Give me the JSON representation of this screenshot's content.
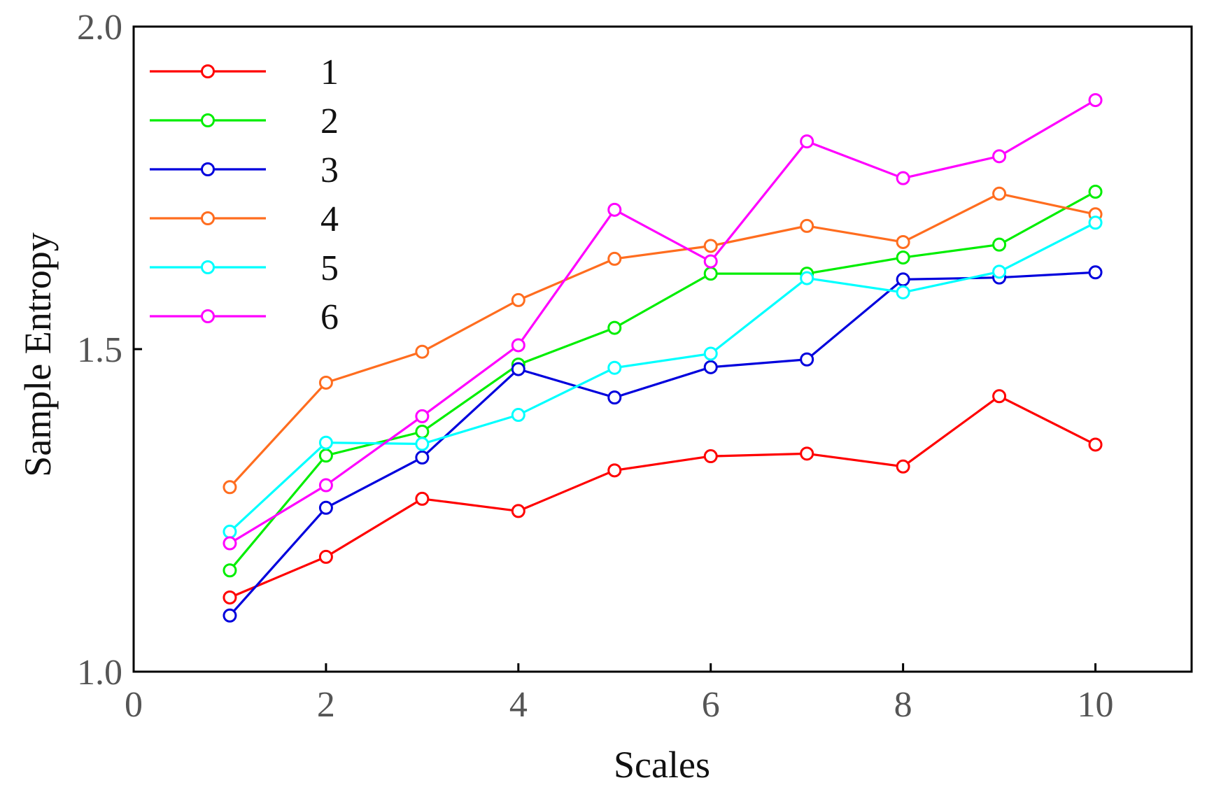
{
  "chart_data": {
    "type": "line",
    "title": "",
    "xlabel": "Scales",
    "ylabel": "Sample Entropy",
    "xlim": [
      0,
      11
    ],
    "ylim": [
      1.0,
      2.0
    ],
    "xticks": [
      0,
      2,
      4,
      6,
      8,
      10
    ],
    "xtick_labels": [
      "0",
      "2",
      "4",
      "6",
      "8",
      "10"
    ],
    "yticks": [
      1.0,
      1.5,
      2.0
    ],
    "ytick_labels": [
      "1.0",
      "1.5",
      "2.0"
    ],
    "grid": false,
    "legend_position": "top-left",
    "x": [
      1,
      2,
      3,
      4,
      5,
      6,
      7,
      8,
      9,
      10
    ],
    "series": [
      {
        "name": "1",
        "color": "#ff0000",
        "values": [
          1.115,
          1.178,
          1.268,
          1.249,
          1.312,
          1.334,
          1.338,
          1.318,
          1.427,
          1.352
        ]
      },
      {
        "name": "2",
        "color": "#00ee00",
        "values": [
          1.157,
          1.335,
          1.372,
          1.476,
          1.533,
          1.617,
          1.617,
          1.642,
          1.662,
          1.744
        ]
      },
      {
        "name": "3",
        "color": "#0000dd",
        "values": [
          1.087,
          1.254,
          1.332,
          1.469,
          1.425,
          1.472,
          1.484,
          1.608,
          1.611,
          1.619
        ]
      },
      {
        "name": "4",
        "color": "#ff6d1f",
        "values": [
          1.286,
          1.448,
          1.496,
          1.576,
          1.64,
          1.66,
          1.691,
          1.666,
          1.741,
          1.709
        ]
      },
      {
        "name": "5",
        "color": "#00ffff",
        "values": [
          1.217,
          1.355,
          1.353,
          1.398,
          1.471,
          1.493,
          1.61,
          1.588,
          1.62,
          1.696
        ]
      },
      {
        "name": "6",
        "color": "#ff00ff",
        "values": [
          1.199,
          1.289,
          1.396,
          1.506,
          1.716,
          1.636,
          1.822,
          1.765,
          1.799,
          1.886
        ]
      }
    ]
  }
}
